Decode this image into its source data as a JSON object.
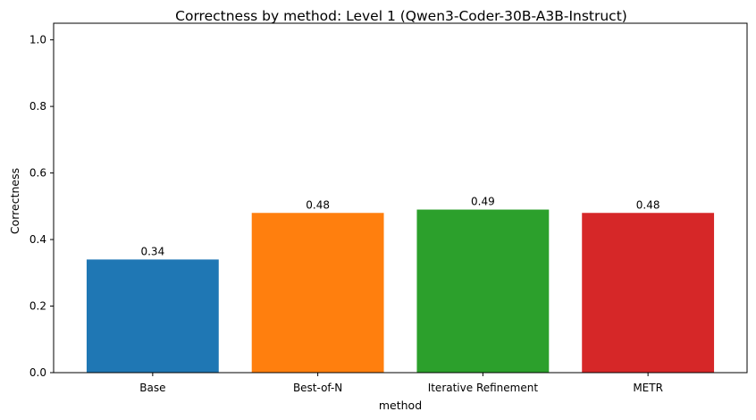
{
  "chart_data": {
    "type": "bar",
    "title": "Correctness by method: Level 1 (Qwen3-Coder-30B-A3B-Instruct)",
    "xlabel": "method",
    "ylabel": "Correctness",
    "categories": [
      "Base",
      "Best-of-N",
      "Iterative Refinement",
      "METR"
    ],
    "values": [
      0.34,
      0.48,
      0.49,
      0.48
    ],
    "data_labels": [
      "0.34",
      "0.48",
      "0.49",
      "0.48"
    ],
    "colors": [
      "#1f77b4",
      "#ff7f0e",
      "#2ca02c",
      "#d62728"
    ],
    "ylim": [
      0,
      1.05
    ],
    "yticks": [
      0.0,
      0.2,
      0.4,
      0.6,
      0.8,
      1.0
    ],
    "ytick_labels": [
      "0.0",
      "0.2",
      "0.4",
      "0.6",
      "0.8",
      "1.0"
    ],
    "grid": false,
    "legend": "none"
  }
}
